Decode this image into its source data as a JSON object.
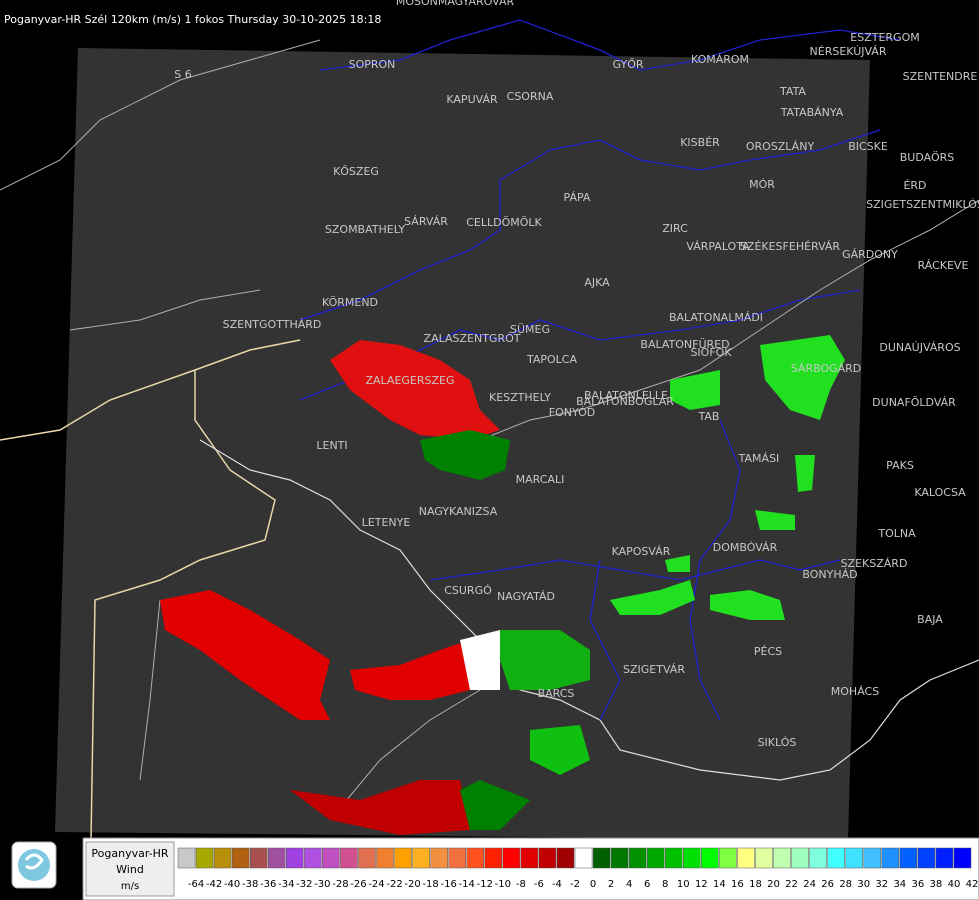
{
  "header": {
    "title": "Poganyvar-HR Szél 120km (m/s) 1 fokos Thursday 30-10-2025 18:18"
  },
  "places": [
    "MOSONMAGYARÓVÁR",
    "SOPRON",
    "KAPUVÁR",
    "CSORNA",
    "GYŐR",
    "KOMÁROM",
    "NÉRSEKÚJVÁR",
    "ESZTERGOM",
    "SZENTENDRE",
    "TATA",
    "TATABÁNYA",
    "KISBÉR",
    "OROSZLÁNY",
    "BICSKE",
    "BUDAÖRS",
    "ÉRD",
    "SZIGETSZENTMIKLÓS",
    "KŐSZEG",
    "SZOMBATHELY",
    "SÁRVÁR",
    "CELLDÖMÖLK",
    "PÁPA",
    "ZIRC",
    "VÁRPALOTA",
    "SZÉKESFEHÉRVÁR",
    "GÁRDONY",
    "RÁCKEVE",
    "AJKA",
    "MÓR",
    "KÖRMEND",
    "SZENTGOTTHÁRD",
    "BALATONALMÁDI",
    "ZALASZENTGRÓT",
    "SÜMEG",
    "BALATONFÜRED",
    "SIÓFOK",
    "DUNAÚJVÁROS",
    "TAPOLCA",
    "SÁRBOGÁRD",
    "ZALAEGERSZEG",
    "BALATONLELLE",
    "DUNAFÖLDVÁR",
    "KESZTHELY",
    "FONYÓD",
    "BALATONBOGLÁR",
    "TAB",
    "LENTI",
    "TAMÁSI",
    "PAKS",
    "MARCALI",
    "KALOCSA",
    "NAGYKANIZSA",
    "LETENYE",
    "TOLNA",
    "KAPOSVÁR",
    "DOMBÓVÁR",
    "SZEKSZÁRD",
    "BONYHÁD",
    "CSURGÓ",
    "NAGYATÁD",
    "BAJA",
    "PÉCS",
    "SZIGETVÁR",
    "BARCS",
    "MOHÁCS",
    "SIKLÓS",
    "S 6"
  ],
  "legend": {
    "station": "Poganyvar-HR",
    "quantity": "Wind",
    "unit": "m/s",
    "items": [
      {
        "value": -64,
        "color": "#c8c8c8"
      },
      {
        "value": -42,
        "color": "#a8a800"
      },
      {
        "value": -40,
        "color": "#b8900a"
      },
      {
        "value": -38,
        "color": "#b06010"
      },
      {
        "value": -36,
        "color": "#a85050"
      },
      {
        "value": -34,
        "color": "#a050a0"
      },
      {
        "value": -32,
        "color": "#a040e0"
      },
      {
        "value": -30,
        "color": "#b050e0"
      },
      {
        "value": -28,
        "color": "#c050c0"
      },
      {
        "value": -26,
        "color": "#d05090"
      },
      {
        "value": -24,
        "color": "#e07050"
      },
      {
        "value": -22,
        "color": "#f08030"
      },
      {
        "value": -20,
        "color": "#ffa000"
      },
      {
        "value": -18,
        "color": "#ffb020"
      },
      {
        "value": -16,
        "color": "#f09040"
      },
      {
        "value": -14,
        "color": "#f07040"
      },
      {
        "value": -12,
        "color": "#ff5020"
      },
      {
        "value": -10,
        "color": "#ff2000"
      },
      {
        "value": -8,
        "color": "#ff0000"
      },
      {
        "value": -6,
        "color": "#e00000"
      },
      {
        "value": -4,
        "color": "#c00000"
      },
      {
        "value": -2,
        "color": "#a00000"
      },
      {
        "value": 0,
        "color": "#ffffff"
      },
      {
        "value": 2,
        "color": "#006000"
      },
      {
        "value": 4,
        "color": "#007800"
      },
      {
        "value": 6,
        "color": "#009000"
      },
      {
        "value": 8,
        "color": "#00a800"
      },
      {
        "value": 10,
        "color": "#00c000"
      },
      {
        "value": 12,
        "color": "#00e000"
      },
      {
        "value": 14,
        "color": "#00ff00"
      },
      {
        "value": 16,
        "color": "#80ff40"
      },
      {
        "value": 18,
        "color": "#ffff80"
      },
      {
        "value": 20,
        "color": "#e0ffa0"
      },
      {
        "value": 22,
        "color": "#c0ffb0"
      },
      {
        "value": 24,
        "color": "#a0ffc0"
      },
      {
        "value": 26,
        "color": "#80ffe0"
      },
      {
        "value": 28,
        "color": "#40ffff"
      },
      {
        "value": 30,
        "color": "#40e0ff"
      },
      {
        "value": 32,
        "color": "#40c0ff"
      },
      {
        "value": 34,
        "color": "#2090ff"
      },
      {
        "value": 36,
        "color": "#0060ff"
      },
      {
        "value": 38,
        "color": "#0040ff"
      },
      {
        "value": 40,
        "color": "#0020ff"
      },
      {
        "value": 42,
        "color": "#0000ff"
      }
    ]
  }
}
